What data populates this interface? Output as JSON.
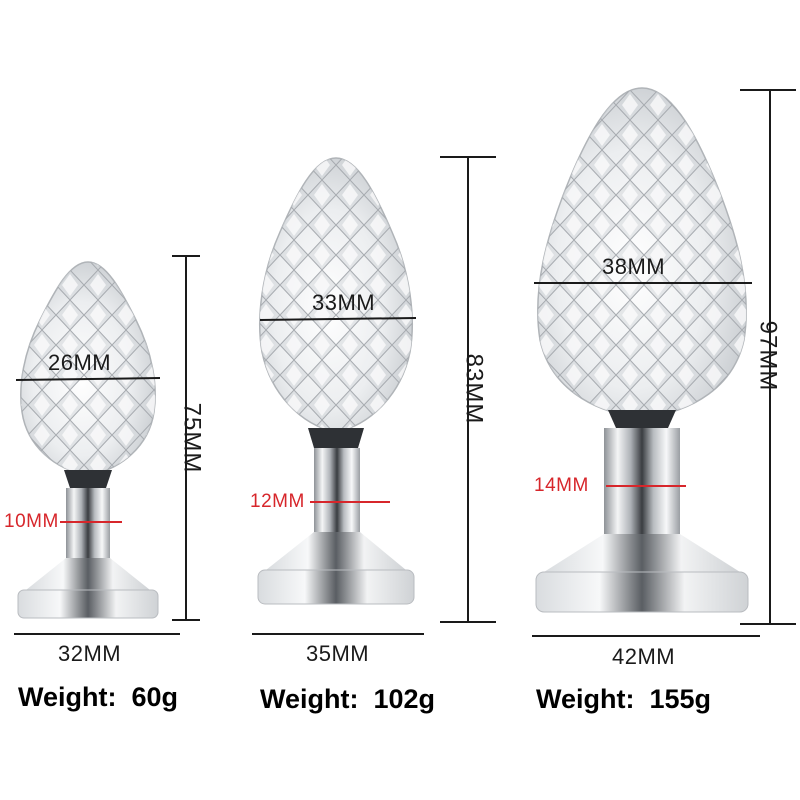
{
  "products": [
    {
      "head_width": "26MM",
      "neck_width": "10MM",
      "base_width": "32MM",
      "length": "75MM",
      "weight_label": "Weight:",
      "weight_value": "60g"
    },
    {
      "head_width": "33MM",
      "neck_width": "12MM",
      "base_width": "35MM",
      "length": "83MM",
      "weight_label": "Weight:",
      "weight_value": "102g"
    },
    {
      "head_width": "38MM",
      "neck_width": "14MM",
      "base_width": "42MM",
      "length": "97MM",
      "weight_label": "Weight:",
      "weight_value": "155g"
    }
  ],
  "colors": {
    "dimension_line": "#1a1a1a",
    "neck_dimension": "#d7262b",
    "metal": "#c9ccd0",
    "crystal": "#e6e8ea"
  }
}
